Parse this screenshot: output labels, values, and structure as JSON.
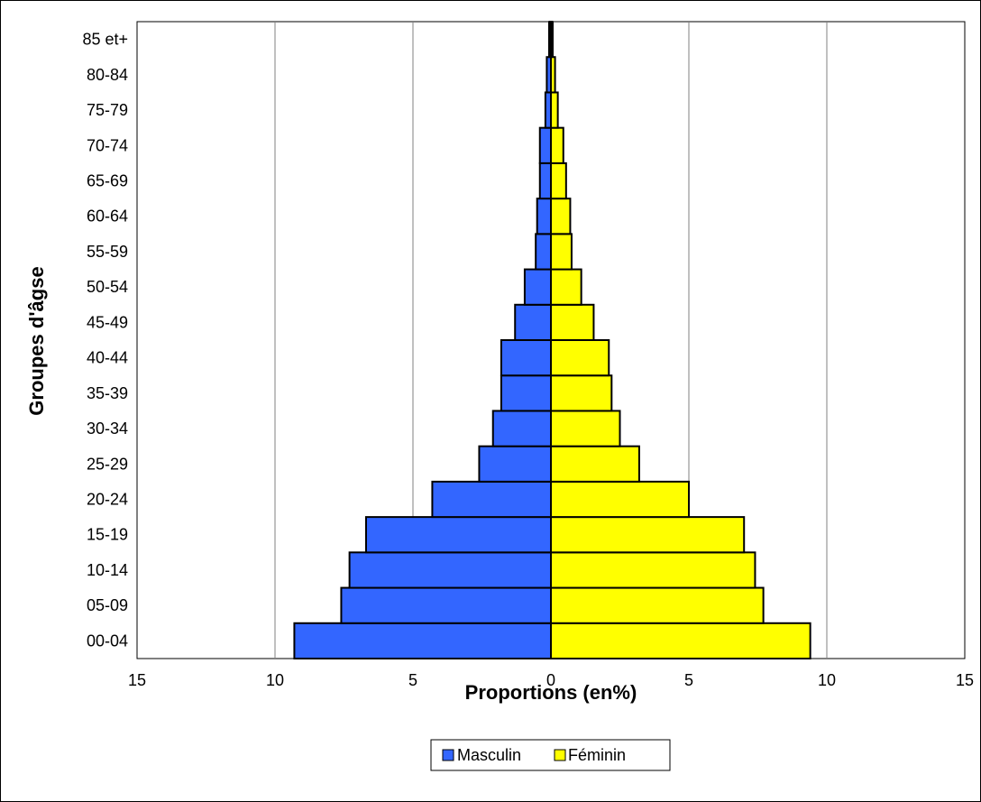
{
  "chart_data": {
    "type": "bar",
    "orientation": "horizontal",
    "subtype": "population-pyramid",
    "title": "",
    "xlabel": "Proportions (en%)",
    "ylabel": "Groupes d'âgse",
    "xlim": [
      -15,
      15
    ],
    "xticks": [
      -15,
      -10,
      -5,
      0,
      5,
      10,
      15
    ],
    "xtick_labels": [
      "15",
      "10",
      "5",
      "0",
      "5",
      "10",
      "15"
    ],
    "grid": true,
    "legend_position": "bottom-center",
    "categories": [
      "00-04",
      "05-09",
      "10-14",
      "15-19",
      "20-24",
      "25-29",
      "30-34",
      "35-39",
      "40-44",
      "45-49",
      "50-54",
      "55-59",
      "60-64",
      "65-69",
      "70-74",
      "75-79",
      "80-84",
      "85 et+"
    ],
    "series": [
      {
        "name": "Masculin",
        "color": "#3366FF",
        "side": "left",
        "values": [
          9.3,
          7.6,
          7.3,
          6.7,
          4.3,
          2.6,
          2.1,
          1.8,
          1.8,
          1.3,
          0.95,
          0.55,
          0.5,
          0.4,
          0.4,
          0.2,
          0.15,
          0.05
        ]
      },
      {
        "name": "Féminin",
        "color": "#FFFF00",
        "side": "right",
        "values": [
          9.4,
          7.7,
          7.4,
          7.0,
          5.0,
          3.2,
          2.5,
          2.2,
          2.1,
          1.55,
          1.1,
          0.75,
          0.7,
          0.55,
          0.45,
          0.25,
          0.15,
          0.05
        ]
      }
    ]
  }
}
